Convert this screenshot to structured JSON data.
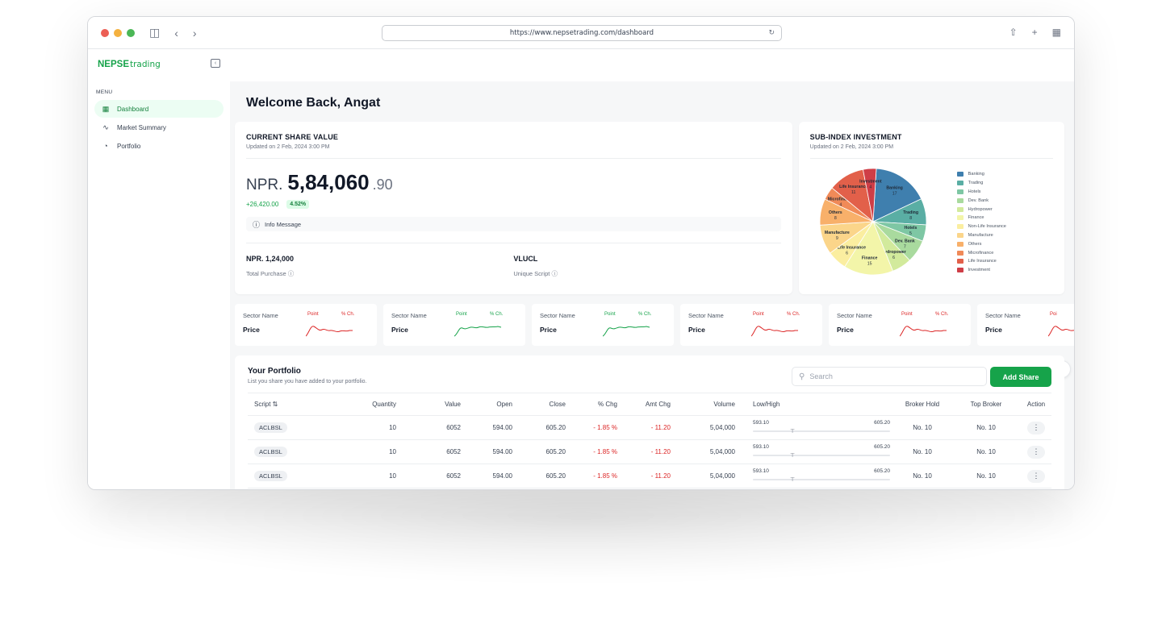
{
  "browser": {
    "url": "https://www.nepsetrading.com/dashboard",
    "dot_colors": [
      "#ec5f55",
      "#f4b13f",
      "#4bb756"
    ]
  },
  "sidebar": {
    "logo_bold": "NEPSE",
    "logo_light": "trading",
    "menu_label": "MENU",
    "items": [
      {
        "label": "Dashboard",
        "icon": "grid-icon",
        "active": true
      },
      {
        "label": "Market Summary",
        "icon": "chart-line-icon",
        "active": false
      },
      {
        "label": "Portfolio",
        "icon": "pie-icon",
        "active": false
      }
    ]
  },
  "main": {
    "welcome": "Welcome Back, Angat"
  },
  "share_card": {
    "title": "CURRENT SHARE VALUE",
    "updated": "Updated on 2 Feb, 2024 3:00 PM",
    "currency": "NPR.",
    "value": "5,84,060",
    "decimal": ".90",
    "change": "+26,420.00",
    "change_pct": "4.52%",
    "info": "Info Message",
    "total_purchase_value": "NPR. 1,24,000",
    "total_purchase_label": "Total Purchase",
    "unique_script_value": "VLUCL",
    "unique_script_label": "Unique Script"
  },
  "sub_index": {
    "title": "SUB-INDEX INVESTMENT",
    "updated": "Updated on 2 Feb, 2024 3:00 PM",
    "legend": [
      {
        "name": "Banking",
        "color": "#3f7fae"
      },
      {
        "name": "Trading",
        "color": "#5aaea4"
      },
      {
        "name": "Hotels",
        "color": "#7ec7a4"
      },
      {
        "name": "Dev. Bank",
        "color": "#a9da9e"
      },
      {
        "name": "Hydropower",
        "color": "#d2ea9c"
      },
      {
        "name": "Finance",
        "color": "#f3f5a9"
      },
      {
        "name": "Non-Life Insurance",
        "color": "#fbeea0"
      },
      {
        "name": "Manufacture",
        "color": "#fbd58a"
      },
      {
        "name": "Others",
        "color": "#f8b06a"
      },
      {
        "name": "Microfinance",
        "color": "#f08a58"
      },
      {
        "name": "Life Insurance",
        "color": "#e2604a"
      },
      {
        "name": "Investment",
        "color": "#cf3e47"
      }
    ]
  },
  "chart_data": {
    "type": "pie",
    "labels": [
      "Banking",
      "Trading",
      "Hotels",
      "Dev. Bank",
      "Hydropower",
      "Finance",
      "Non-Life Insurance",
      "Manufacture",
      "Others",
      "Microfinance",
      "Life Insurance",
      "Investment"
    ],
    "values": [
      17,
      8,
      5,
      7,
      6,
      15,
      6,
      9,
      8,
      4,
      11,
      4
    ],
    "colors": [
      "#3f7fae",
      "#5aaea4",
      "#7ec7a4",
      "#a9da9e",
      "#d2ea9c",
      "#f3f5a9",
      "#fbeea0",
      "#fbd58a",
      "#f8b06a",
      "#f08a58",
      "#e2604a",
      "#cf3e47"
    ],
    "legend_position": "right"
  },
  "sectors": [
    {
      "name": "Sector Name",
      "price": "Price",
      "point": "Point",
      "pct": "% Ch.",
      "trend": "down",
      "color": "#dc2626"
    },
    {
      "name": "Sector Name",
      "price": "Price",
      "point": "Point",
      "pct": "% Ch.",
      "trend": "up",
      "color": "#16a34a"
    },
    {
      "name": "Sector Name",
      "price": "Price",
      "point": "Point",
      "pct": "% Ch.",
      "trend": "up",
      "color": "#16a34a"
    },
    {
      "name": "Sector Name",
      "price": "Price",
      "point": "Point",
      "pct": "% Ch.",
      "trend": "down",
      "color": "#dc2626"
    },
    {
      "name": "Sector Name",
      "price": "Price",
      "point": "Point",
      "pct": "% Ch.",
      "trend": "down",
      "color": "#dc2626"
    },
    {
      "name": "Sector Name",
      "price": "Price",
      "point": "Poi",
      "pct": "",
      "trend": "down",
      "color": "#dc2626"
    }
  ],
  "portfolio": {
    "title": "Your Portfolio",
    "subtitle": "List you share you have added to your portfolio.",
    "search_placeholder": "Search",
    "add_label": "Add Share",
    "columns": [
      "Script ⇅",
      "Quantity",
      "Value",
      "Open",
      "Close",
      "% Chg",
      "Amt Chg",
      "Volume",
      "Low/High",
      "Broker Hold",
      "Top Broker",
      "Action"
    ],
    "rows": [
      {
        "script": "ACLBSL",
        "quantity": "10",
        "value": "6052",
        "open": "594.00",
        "close": "605.20",
        "pct": "- 1.85  %",
        "amt": "- 11.20",
        "volume": "5,04,000",
        "low": "593.10",
        "high": "605.20",
        "broker_hold": "No. 10",
        "top_broker": "No. 10"
      },
      {
        "script": "ACLBSL",
        "quantity": "10",
        "value": "6052",
        "open": "594.00",
        "close": "605.20",
        "pct": "- 1.85  %",
        "amt": "- 11.20",
        "volume": "5,04,000",
        "low": "593.10",
        "high": "605.20",
        "broker_hold": "No. 10",
        "top_broker": "No. 10"
      },
      {
        "script": "ACLBSL",
        "quantity": "10",
        "value": "6052",
        "open": "594.00",
        "close": "605.20",
        "pct": "- 1.85  %",
        "amt": "- 11.20",
        "volume": "5,04,000",
        "low": "593.10",
        "high": "605.20",
        "broker_hold": "No. 10",
        "top_broker": "No. 10"
      }
    ]
  }
}
